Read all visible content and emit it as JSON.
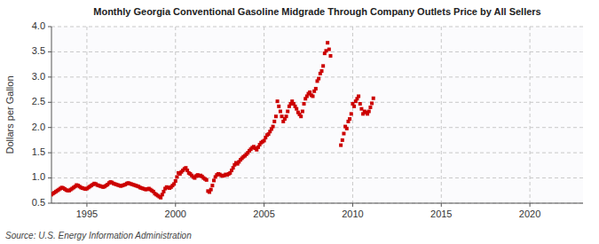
{
  "chart_data": {
    "type": "scatter",
    "title": "Monthly Georgia Conventional Gasoline Midgrade Through Company Outlets Price by All Sellers",
    "ylabel": "Dollars per Gallon",
    "source": "Source: U.S. Energy Information Administration",
    "color": "#CC0000",
    "marker": "square",
    "grid": true,
    "xlim": [
      1993.0,
      2023.0
    ],
    "ylim": [
      0.5,
      4.0
    ],
    "xticks": [
      1995,
      2000,
      2005,
      2010,
      2015,
      2020
    ],
    "yticks": [
      0.5,
      {
        "value": 1.0,
        "label": "1.0"
      },
      1.5,
      {
        "value": 2.0,
        "label": "2.0"
      },
      2.5,
      {
        "value": 3.0,
        "label": "3.0"
      },
      3.5,
      {
        "value": 4.0,
        "label": "4.0"
      }
    ],
    "x": [
      1993.0,
      1993.083,
      1993.167,
      1993.25,
      1993.333,
      1993.417,
      1993.5,
      1993.583,
      1993.667,
      1993.75,
      1993.833,
      1993.917,
      1994.0,
      1994.083,
      1994.167,
      1994.25,
      1994.333,
      1994.417,
      1994.5,
      1994.583,
      1994.667,
      1994.75,
      1994.833,
      1994.917,
      1995.0,
      1995.083,
      1995.167,
      1995.25,
      1995.333,
      1995.417,
      1995.5,
      1995.583,
      1995.667,
      1995.75,
      1995.833,
      1995.917,
      1996.0,
      1996.083,
      1996.167,
      1996.25,
      1996.333,
      1996.417,
      1996.5,
      1996.583,
      1996.667,
      1996.75,
      1996.833,
      1996.917,
      1997.0,
      1997.083,
      1997.167,
      1997.25,
      1997.333,
      1997.417,
      1997.5,
      1997.583,
      1997.667,
      1997.75,
      1997.833,
      1997.917,
      1998.0,
      1998.083,
      1998.167,
      1998.25,
      1998.333,
      1998.417,
      1998.5,
      1998.583,
      1998.667,
      1998.75,
      1998.833,
      1998.917,
      1999.0,
      1999.083,
      1999.167,
      1999.25,
      1999.333,
      1999.417,
      1999.5,
      1999.583,
      1999.667,
      1999.75,
      1999.833,
      1999.917,
      2000.0,
      2000.083,
      2000.167,
      2000.25,
      2000.333,
      2000.417,
      2000.5,
      2000.583,
      2000.667,
      2000.75,
      2000.833,
      2000.917,
      2001.0,
      2001.083,
      2001.167,
      2001.25,
      2001.333,
      2001.417,
      2001.5,
      2001.583,
      2001.667,
      2001.75,
      2001.833,
      2001.917,
      2002.0,
      2002.083,
      2002.167,
      2002.25,
      2002.333,
      2002.417,
      2002.5,
      2002.583,
      2002.667,
      2002.75,
      2002.833,
      2002.917,
      2003.0,
      2003.083,
      2003.167,
      2003.25,
      2003.333,
      2003.417,
      2003.5,
      2003.583,
      2003.667,
      2003.75,
      2003.833,
      2003.917,
      2004.0,
      2004.083,
      2004.167,
      2004.25,
      2004.333,
      2004.417,
      2004.5,
      2004.583,
      2004.667,
      2004.75,
      2004.833,
      2004.917,
      2005.0,
      2005.083,
      2005.167,
      2005.25,
      2005.333,
      2005.417,
      2005.5,
      2005.583,
      2005.667,
      2005.75,
      2005.833,
      2005.917,
      2006.0,
      2006.083,
      2006.167,
      2006.25,
      2006.333,
      2006.417,
      2006.5,
      2006.583,
      2006.667,
      2006.75,
      2006.833,
      2006.917,
      2007.0,
      2007.083,
      2007.167,
      2007.25,
      2007.333,
      2007.417,
      2007.5,
      2007.583,
      2007.667,
      2007.75,
      2007.833,
      2007.917,
      2008.0,
      2008.083,
      2008.167,
      2008.25,
      2008.333,
      2008.417,
      2008.5,
      2008.583,
      2008.667,
      2008.75,
      2009.333,
      2009.417,
      2009.5,
      2009.583,
      2009.667,
      2009.75,
      2009.833,
      2009.917,
      2010.0,
      2010.083,
      2010.167,
      2010.25,
      2010.333,
      2010.417,
      2010.5,
      2010.583,
      2010.667,
      2010.75,
      2010.833,
      2010.917,
      2011.0,
      2011.083,
      2011.167
    ],
    "values": [
      0.67,
      0.69,
      0.71,
      0.73,
      0.75,
      0.77,
      0.79,
      0.81,
      0.8,
      0.78,
      0.76,
      0.75,
      0.75,
      0.77,
      0.79,
      0.81,
      0.83,
      0.86,
      0.85,
      0.83,
      0.81,
      0.8,
      0.79,
      0.78,
      0.79,
      0.81,
      0.83,
      0.85,
      0.87,
      0.89,
      0.88,
      0.86,
      0.85,
      0.84,
      0.83,
      0.82,
      0.83,
      0.85,
      0.87,
      0.9,
      0.92,
      0.91,
      0.89,
      0.88,
      0.87,
      0.86,
      0.85,
      0.84,
      0.85,
      0.86,
      0.87,
      0.89,
      0.9,
      0.89,
      0.88,
      0.87,
      0.86,
      0.85,
      0.84,
      0.83,
      0.81,
      0.8,
      0.79,
      0.78,
      0.77,
      0.78,
      0.79,
      0.77,
      0.75,
      0.73,
      0.69,
      0.67,
      0.65,
      0.63,
      0.61,
      0.67,
      0.73,
      0.79,
      0.82,
      0.81,
      0.8,
      0.82,
      0.85,
      0.88,
      0.94,
      1.02,
      1.1,
      1.08,
      1.12,
      1.15,
      1.18,
      1.2,
      1.15,
      1.1,
      1.08,
      1.05,
      1.02,
      1.0,
      1.04,
      1.06,
      1.04,
      1.05,
      1.03,
      1.0,
      0.98,
      0.96,
      0.74,
      0.72,
      0.77,
      0.85,
      0.95,
      1.02,
      1.06,
      1.08,
      1.07,
      1.05,
      1.04,
      1.05,
      1.07,
      1.06,
      1.08,
      1.1,
      1.15,
      1.2,
      1.26,
      1.3,
      1.28,
      1.32,
      1.36,
      1.39,
      1.42,
      1.44,
      1.47,
      1.5,
      1.54,
      1.57,
      1.6,
      1.62,
      1.59,
      1.56,
      1.61,
      1.66,
      1.7,
      1.72,
      1.74,
      1.8,
      1.85,
      1.87,
      1.92,
      1.97,
      2.02,
      2.12,
      2.22,
      2.52,
      2.42,
      2.32,
      2.22,
      2.12,
      2.17,
      2.22,
      2.32,
      2.42,
      2.47,
      2.52,
      2.47,
      2.42,
      2.37,
      2.3,
      2.26,
      2.22,
      2.32,
      2.47,
      2.57,
      2.62,
      2.67,
      2.7,
      2.64,
      2.62,
      2.72,
      2.77,
      2.92,
      2.97,
      3.07,
      3.12,
      3.22,
      3.47,
      3.52,
      3.68,
      3.55,
      3.42,
      1.65,
      1.75,
      1.88,
      2.02,
      1.98,
      2.12,
      2.17,
      2.27,
      2.47,
      2.42,
      2.52,
      2.57,
      2.62,
      2.47,
      2.37,
      2.27,
      2.32,
      2.3,
      2.27,
      2.32,
      2.4,
      2.48,
      2.58
    ]
  }
}
